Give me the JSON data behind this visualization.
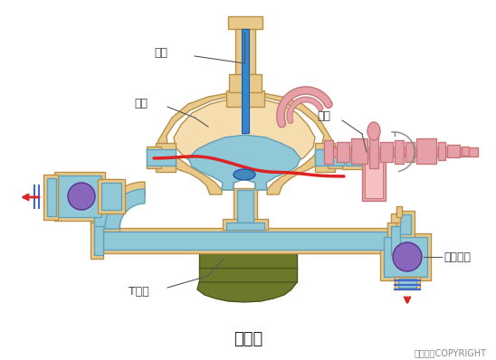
{
  "title": "隔膜泵",
  "copyright": "东方仿真COPYRIGHT",
  "labels": {
    "qi_gang": "气缸",
    "beng_ti": "泵体",
    "ge_mo": "隔膜",
    "dan_xiang_qiu_fa": "单向球阀",
    "t_xing_guan": "T型管"
  },
  "colors": {
    "background": "#ffffff",
    "body_fill": "#e8c98a",
    "body_stroke": "#b8904a",
    "water_fill": "#90c8d8",
    "water_stroke": "#60a0b8",
    "diaphragm_red": "#dd2222",
    "diaphragm_blue": "#3388cc",
    "ball_purple": "#8866bb",
    "pipe_pink": "#e8a0a8",
    "pipe_pink_stroke": "#c07878",
    "green_base": "#6b7a2a",
    "green_stroke": "#4a5518",
    "annotation_line": "#555555",
    "arrow_red": "#dd2222",
    "blue_lines": "#4466cc",
    "inner_peach": "#f5ddb0"
  },
  "figsize": [
    5.48,
    3.98
  ],
  "dpi": 100
}
